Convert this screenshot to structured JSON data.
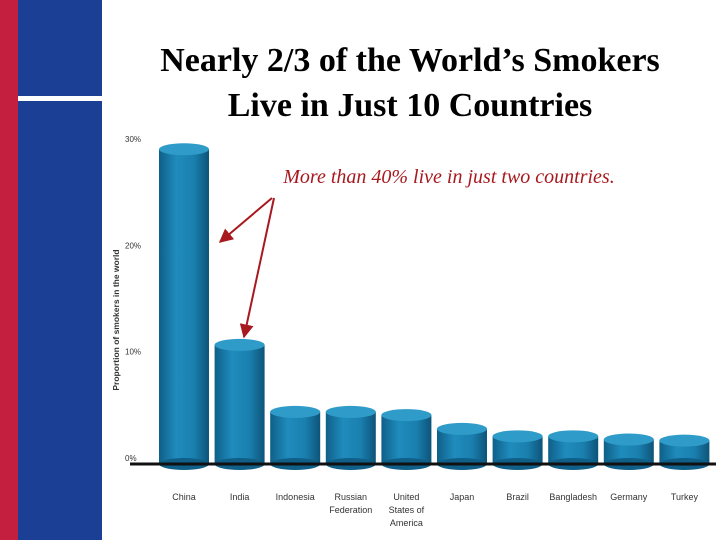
{
  "title_lines": [
    "Nearly 2/3 of the World’s Smokers",
    "Live in Just 10 Countries"
  ],
  "annotation": "More than 40% live in just two countries.",
  "colors": {
    "left_band_red": "#c41f3e",
    "left_band_blue": "#1b3f94",
    "bar_fill": "#1a7fae",
    "bar_top": "#2f9bc8",
    "annotation": "#a8191f",
    "arrow": "#a8191f",
    "baseline": "#111111"
  },
  "chart_data": {
    "type": "bar",
    "title": "",
    "ylabel": "Proportion of smokers in the world",
    "xlabel": "",
    "ylim": [
      0,
      30
    ],
    "yticks": [
      0,
      10,
      20,
      30
    ],
    "ytick_labels": [
      "0%",
      "10%",
      "20%",
      "30%"
    ],
    "grid": false,
    "categories": [
      [
        "China"
      ],
      [
        "India"
      ],
      [
        "Indonesia"
      ],
      [
        "Russian",
        "Federation"
      ],
      [
        "United",
        "States of",
        "America"
      ],
      [
        "Japan"
      ],
      [
        "Brazil"
      ],
      [
        "Bangladesh"
      ],
      [
        "Germany"
      ],
      [
        "Turkey"
      ]
    ],
    "values": [
      29.6,
      11.2,
      4.9,
      4.9,
      4.6,
      3.3,
      2.6,
      2.6,
      2.3,
      2.2
    ]
  }
}
